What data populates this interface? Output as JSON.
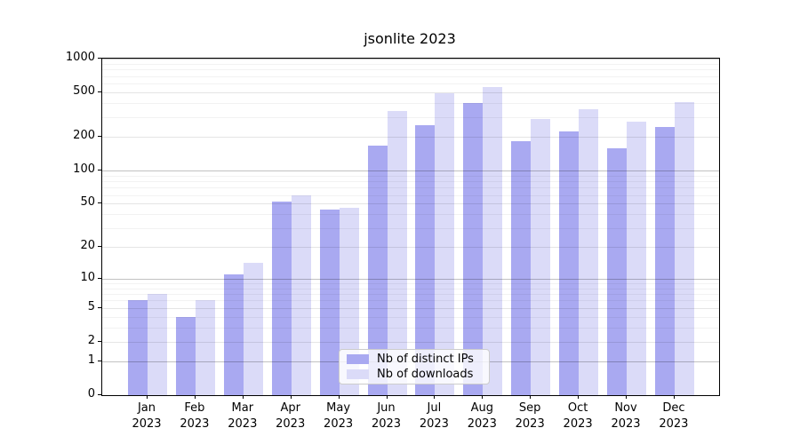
{
  "title": "jsonlite 2023",
  "chart_data": {
    "type": "bar",
    "title": "jsonlite 2023",
    "categories": [
      "Jan",
      "Feb",
      "Mar",
      "Apr",
      "May",
      "Jun",
      "Jul",
      "Aug",
      "Sep",
      "Oct",
      "Nov",
      "Dec"
    ],
    "year_label": "2023",
    "series": [
      {
        "name": "Nb of distinct IPs",
        "color": "#a9a9f1",
        "values": [
          6,
          4,
          11,
          52,
          44,
          168,
          255,
          405,
          184,
          222,
          159,
          246
        ]
      },
      {
        "name": "Nb of downloads",
        "color": "#dbdbf8",
        "values": [
          7,
          6,
          14,
          59,
          46,
          340,
          490,
          560,
          290,
          355,
          272,
          410
        ]
      }
    ],
    "y_scale": "log10(value+1)",
    "ylim": [
      0,
      1000
    ],
    "y_ticks": [
      0,
      1,
      2,
      5,
      10,
      20,
      50,
      100,
      200,
      500,
      1000
    ],
    "y_gridlines_major": [
      1,
      10,
      100,
      1000
    ],
    "y_gridlines_submajor": [
      2,
      5,
      20,
      50,
      200,
      500
    ],
    "y_gridlines_minor": [
      3,
      4,
      6,
      7,
      8,
      9,
      30,
      40,
      60,
      70,
      80,
      90,
      300,
      400,
      600,
      700,
      800,
      900
    ],
    "grid": "horizontal",
    "legend_position": "inside-bottom-center",
    "xlabel": "",
    "ylabel": ""
  },
  "colors": {
    "background": "#ffffff",
    "spine": "#000000",
    "text": "#000000",
    "gridline_major": "rgba(0,0,0,0.24)",
    "gridline_submajor": "rgba(0,0,0,0.10)",
    "gridline_minor": "rgba(0,0,0,0.05)",
    "legend_border": "#cccccc",
    "legend_background": "rgba(255,255,255,0.8)"
  }
}
